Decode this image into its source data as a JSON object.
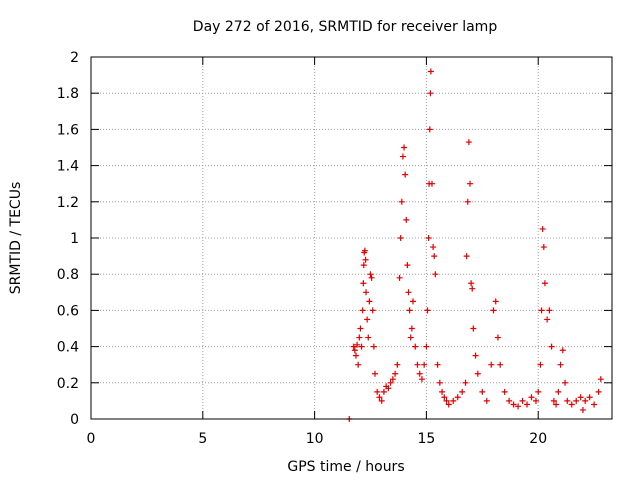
{
  "chart_data": {
    "type": "scatter",
    "title": "Day 272 of 2016, SRMTID for receiver lamp",
    "xlabel": "GPS time / hours",
    "ylabel": "SRMTID / TECUs",
    "xlim": [
      0,
      23.3
    ],
    "ylim": [
      0,
      2
    ],
    "xticks": [
      0,
      5,
      10,
      15,
      20
    ],
    "yticks": [
      0,
      0.2,
      0.4,
      0.6,
      0.8,
      1,
      1.2,
      1.4,
      1.6,
      1.8,
      2
    ],
    "grid": true,
    "marker": "+",
    "color": "#e00000",
    "series": [
      {
        "name": "SRMTID",
        "points": [
          [
            11.55,
            0.0
          ],
          [
            11.75,
            0.4
          ],
          [
            11.8,
            0.38
          ],
          [
            11.85,
            0.35
          ],
          [
            11.9,
            0.41
          ],
          [
            11.95,
            0.3
          ],
          [
            12.0,
            0.45
          ],
          [
            12.05,
            0.5
          ],
          [
            12.1,
            0.4
          ],
          [
            12.15,
            0.6
          ],
          [
            12.18,
            0.75
          ],
          [
            12.2,
            0.85
          ],
          [
            12.22,
            0.92
          ],
          [
            12.25,
            0.93
          ],
          [
            12.28,
            0.88
          ],
          [
            12.3,
            0.7
          ],
          [
            12.35,
            0.55
          ],
          [
            12.4,
            0.45
          ],
          [
            12.45,
            0.65
          ],
          [
            12.5,
            0.8
          ],
          [
            12.55,
            0.78
          ],
          [
            12.6,
            0.6
          ],
          [
            12.65,
            0.4
          ],
          [
            12.7,
            0.25
          ],
          [
            12.8,
            0.15
          ],
          [
            12.9,
            0.12
          ],
          [
            13.0,
            0.1
          ],
          [
            13.1,
            0.15
          ],
          [
            13.2,
            0.18
          ],
          [
            13.3,
            0.17
          ],
          [
            13.4,
            0.2
          ],
          [
            13.5,
            0.22
          ],
          [
            13.6,
            0.25
          ],
          [
            13.7,
            0.3
          ],
          [
            13.8,
            0.78
          ],
          [
            13.85,
            1.0
          ],
          [
            13.9,
            1.2
          ],
          [
            13.95,
            1.45
          ],
          [
            14.0,
            1.5
          ],
          [
            14.05,
            1.35
          ],
          [
            14.1,
            1.1
          ],
          [
            14.15,
            0.85
          ],
          [
            14.2,
            0.7
          ],
          [
            14.25,
            0.6
          ],
          [
            14.3,
            0.45
          ],
          [
            14.35,
            0.5
          ],
          [
            14.4,
            0.65
          ],
          [
            14.5,
            0.4
          ],
          [
            14.6,
            0.3
          ],
          [
            14.7,
            0.25
          ],
          [
            14.8,
            0.22
          ],
          [
            14.9,
            0.3
          ],
          [
            15.0,
            0.4
          ],
          [
            15.05,
            0.6
          ],
          [
            15.1,
            1.0
          ],
          [
            15.12,
            1.3
          ],
          [
            15.15,
            1.6
          ],
          [
            15.18,
            1.8
          ],
          [
            15.2,
            1.92
          ],
          [
            15.25,
            1.3
          ],
          [
            15.3,
            0.95
          ],
          [
            15.35,
            0.9
          ],
          [
            15.4,
            0.8
          ],
          [
            15.5,
            0.3
          ],
          [
            15.6,
            0.2
          ],
          [
            15.7,
            0.15
          ],
          [
            15.8,
            0.12
          ],
          [
            15.9,
            0.1
          ],
          [
            16.0,
            0.08
          ],
          [
            16.2,
            0.1
          ],
          [
            16.4,
            0.12
          ],
          [
            16.6,
            0.15
          ],
          [
            16.75,
            0.2
          ],
          [
            16.8,
            0.9
          ],
          [
            16.85,
            1.2
          ],
          [
            16.9,
            1.53
          ],
          [
            16.95,
            1.3
          ],
          [
            17.0,
            0.75
          ],
          [
            17.05,
            0.72
          ],
          [
            17.1,
            0.5
          ],
          [
            17.2,
            0.35
          ],
          [
            17.3,
            0.25
          ],
          [
            17.5,
            0.15
          ],
          [
            17.7,
            0.1
          ],
          [
            17.9,
            0.3
          ],
          [
            18.0,
            0.6
          ],
          [
            18.1,
            0.65
          ],
          [
            18.2,
            0.45
          ],
          [
            18.3,
            0.3
          ],
          [
            18.5,
            0.15
          ],
          [
            18.7,
            0.1
          ],
          [
            18.9,
            0.08
          ],
          [
            19.1,
            0.07
          ],
          [
            19.3,
            0.1
          ],
          [
            19.5,
            0.08
          ],
          [
            19.7,
            0.12
          ],
          [
            19.9,
            0.1
          ],
          [
            20.0,
            0.15
          ],
          [
            20.1,
            0.3
          ],
          [
            20.15,
            0.6
          ],
          [
            20.2,
            1.05
          ],
          [
            20.25,
            0.95
          ],
          [
            20.3,
            0.75
          ],
          [
            20.4,
            0.55
          ],
          [
            20.5,
            0.6
          ],
          [
            20.6,
            0.4
          ],
          [
            20.7,
            0.1
          ],
          [
            20.8,
            0.08
          ],
          [
            20.9,
            0.15
          ],
          [
            21.0,
            0.3
          ],
          [
            21.1,
            0.38
          ],
          [
            21.2,
            0.2
          ],
          [
            21.3,
            0.1
          ],
          [
            21.5,
            0.08
          ],
          [
            21.7,
            0.1
          ],
          [
            21.9,
            0.12
          ],
          [
            22.0,
            0.05
          ],
          [
            22.1,
            0.1
          ],
          [
            22.3,
            0.12
          ],
          [
            22.5,
            0.08
          ],
          [
            22.7,
            0.15
          ],
          [
            22.8,
            0.22
          ]
        ]
      }
    ]
  }
}
